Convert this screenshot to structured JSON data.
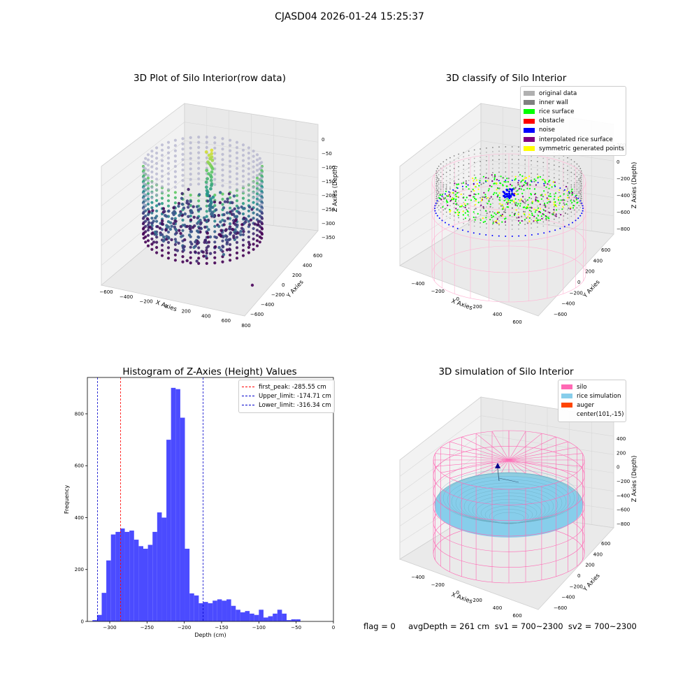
{
  "figure": {
    "suptitle": "CJASD04 2026-01-24 15:25:37",
    "footer": "flag = 0     avgDepth = 261 cm  sv1 = 700~2300  sv2 = 700~2300"
  },
  "panels": {
    "raw": {
      "title": "3D Plot of Silo Interior(row data)",
      "xlabel": "X Axies",
      "ylabel": "Y Axies",
      "zlabel": "Z Axies (Depth)",
      "xticks": [
        "−600",
        "−400",
        "−200",
        "0",
        "200",
        "400",
        "600",
        "800"
      ],
      "yticks": [
        "600",
        "400",
        "200",
        "0",
        "−200",
        "−400",
        "−600"
      ],
      "zticks": [
        "0",
        "−50",
        "−100",
        "−150",
        "−200",
        "−250",
        "−300",
        "−350"
      ]
    },
    "classify": {
      "title": "3D classify of Silo Interior",
      "xlabel": "X Axies",
      "ylabel": "Y Axies",
      "zlabel": "Z Axies (Depth)",
      "xticks": [
        "−400",
        "−200",
        "0",
        "200",
        "400",
        "600"
      ],
      "yticks": [
        "600",
        "400",
        "200",
        "0",
        "−200",
        "−400",
        "−600"
      ],
      "zticks": [
        "200",
        "0",
        "−200",
        "−400",
        "−600",
        "−800"
      ],
      "legend": [
        {
          "label": "original data",
          "color": "#b0b0b0"
        },
        {
          "label": "inner wall",
          "color": "#808080"
        },
        {
          "label": "rice surface",
          "color": "#00ff00"
        },
        {
          "label": "obstacle",
          "color": "#ff0000"
        },
        {
          "label": "noise",
          "color": "#0000ff"
        },
        {
          "label": "interpolated rice surface",
          "color": "#800080"
        },
        {
          "label": "symmetric generated points",
          "color": "#ffff00"
        }
      ]
    },
    "simulation": {
      "title": "3D simulation of Silo Interior",
      "xlabel": "X Axies",
      "ylabel": "Y Axies",
      "zlabel": "Z Axies (Depth)",
      "xticks": [
        "−400",
        "−200",
        "0",
        "200",
        "400",
        "600"
      ],
      "yticks": [
        "600",
        "400",
        "200",
        "0",
        "−200",
        "−400",
        "−600"
      ],
      "zticks": [
        "400",
        "200",
        "0",
        "−200",
        "−400",
        "−600",
        "−800"
      ],
      "legend": [
        {
          "label": "silo",
          "color": "#ff69b4"
        },
        {
          "label": "rice simulation",
          "color": "#87ceeb"
        },
        {
          "label": "auger",
          "color": "#ff4500"
        },
        {
          "label": "center(101,-15)",
          "color": "transparent"
        }
      ]
    }
  },
  "chart_data": {
    "type": "bar",
    "title": "Histogram of Z-Axies (Height) Values",
    "xlabel": "Depth (cm)",
    "ylabel": "Frequency",
    "xlim": [
      -330,
      0
    ],
    "ylim": [
      0,
      940
    ],
    "xticks": [
      -300,
      -250,
      -200,
      -150,
      -100,
      -50,
      0
    ],
    "xtick_labels": [
      "−300",
      "−250",
      "−200",
      "−150",
      "−100",
      "−50",
      "0"
    ],
    "yticks": [
      0,
      200,
      400,
      600,
      800
    ],
    "bar_color": "#4b4bff",
    "bins": {
      "start": -323.2,
      "width": 6.2,
      "counts": [
        5,
        25,
        110,
        235,
        335,
        345,
        358,
        345,
        350,
        315,
        290,
        280,
        295,
        345,
        420,
        400,
        700,
        900,
        895,
        785,
        280,
        108,
        100,
        70,
        75,
        70,
        80,
        85,
        80,
        85,
        60,
        45,
        35,
        40,
        30,
        25,
        45,
        15,
        20,
        30,
        45,
        30,
        5,
        8,
        8
      ]
    },
    "vlines": [
      {
        "x": -285.55,
        "label": "first_peak: -285.55 cm",
        "color": "#ff0000"
      },
      {
        "x": -174.71,
        "label": "Upper_limit: -174.71 cm",
        "color": "#0000cc"
      },
      {
        "x": -316.34,
        "label": "Lower_limit: -316.34 cm",
        "color": "#0000cc"
      }
    ],
    "legend_position": "upper right",
    "grid": false
  }
}
